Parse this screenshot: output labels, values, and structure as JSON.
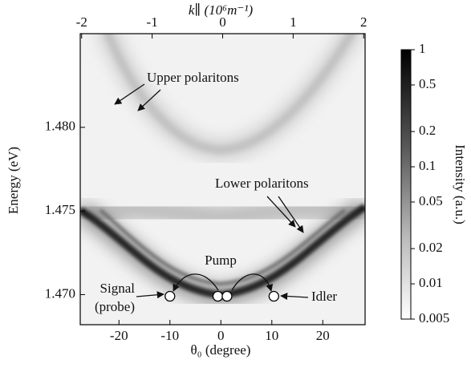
{
  "chart_data": {
    "type": "heatmap",
    "xlabel": "θ₀ (degree)",
    "x2label": "k∥ (10⁶m⁻¹)",
    "ylabel": "Energy (eV)",
    "colorbar_label": "Intensity (a.u.)",
    "xlim": [
      -27.6,
      28.3
    ],
    "xticks": [
      -20,
      -10,
      0,
      10,
      20
    ],
    "x2lim": [
      -2.02,
      2.02
    ],
    "x2ticks": [
      -2,
      -1,
      0,
      1,
      2
    ],
    "ylim": [
      1.4682,
      1.4856
    ],
    "yticks": [
      {
        "value": 1.47,
        "label": "1.470"
      },
      {
        "value": 1.475,
        "label": "1.475"
      },
      {
        "value": 1.48,
        "label": "1.480"
      }
    ],
    "colorbar_scale": "log",
    "clim": [
      0.005,
      1
    ],
    "cticks": [
      1,
      0.5,
      0.2,
      0.1,
      0.05,
      0.02,
      0.01,
      0.005
    ],
    "points": {
      "x": [
        -10,
        -0.6,
        1.2,
        10.4
      ],
      "y": [
        1.4699,
        1.4699,
        1.4699,
        1.4699
      ]
    },
    "annotations": [
      "Upper polaritons",
      "Lower polaritons",
      "Pump",
      "Signal",
      "(probe)",
      "Idler"
    ]
  }
}
